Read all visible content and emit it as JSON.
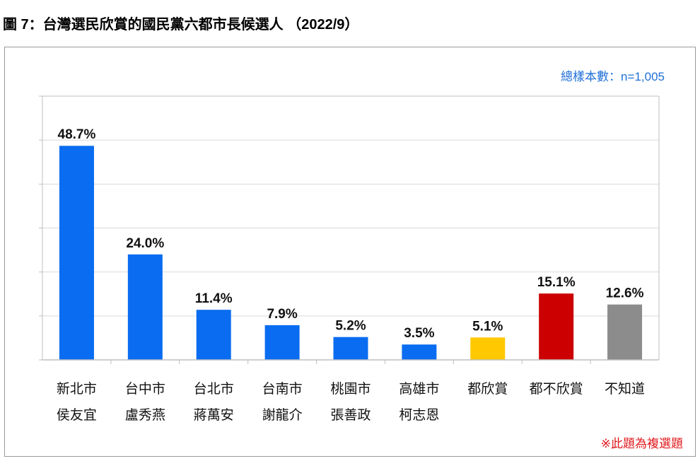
{
  "figure": {
    "title": "圖 7：台灣選民欣賞的國民黨六都市長候選人 （2022/9）",
    "sample_note": "總樣本數：n=1,005",
    "footnote": "※此題為複選題"
  },
  "chart_data": {
    "type": "bar",
    "categories": [
      [
        "新北市",
        "侯友宜"
      ],
      [
        "台中市",
        "盧秀燕"
      ],
      [
        "台北市",
        "蔣萬安"
      ],
      [
        "台南市",
        "謝龍介"
      ],
      [
        "桃園市",
        "張善政"
      ],
      [
        "高雄市",
        "柯志恩"
      ],
      [
        "都欣賞"
      ],
      [
        "都不欣賞"
      ],
      [
        "不知道"
      ]
    ],
    "values": [
      48.7,
      24.0,
      11.4,
      7.9,
      5.2,
      3.5,
      5.1,
      15.1,
      12.6
    ],
    "data_labels": [
      "48.7%",
      "24.0%",
      "11.4%",
      "7.9%",
      "5.2%",
      "3.5%",
      "5.1%",
      "15.1%",
      "12.6%"
    ],
    "colors": [
      "#0a6cf0",
      "#0a6cf0",
      "#0a6cf0",
      "#0a6cf0",
      "#0a6cf0",
      "#0a6cf0",
      "#ffc800",
      "#cc0000",
      "#8c8c8c"
    ],
    "ylim": [
      0,
      60
    ],
    "grid": true,
    "gridline_step": 10
  }
}
